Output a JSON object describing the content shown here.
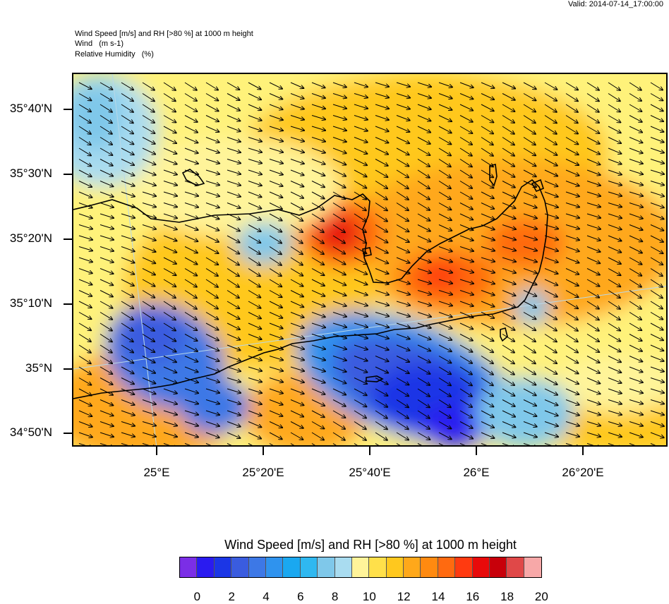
{
  "valid_time": "Valid: 2014-07-14_17:00:00",
  "header": {
    "line1": "Wind Speed [m/s] and RH [>80 %] at 1000 m height",
    "line2": "Wind   (m s-1)",
    "line3": "Relative Humidity   (%)"
  },
  "lat_labels": [
    "35°40'N",
    "35°30'N",
    "35°20'N",
    "35°10'N",
    "35°N",
    "34°50'N"
  ],
  "lon_labels": [
    "25°E",
    "25°20'E",
    "25°40'E",
    "26°E",
    "26°20'E"
  ],
  "colorbar": {
    "title": "Wind Speed [m/s] and RH [>80 %] at 1000 m height",
    "labels": [
      "0",
      "2",
      "4",
      "6",
      "8",
      "10",
      "12",
      "14",
      "16",
      "18",
      "20"
    ],
    "colors": [
      "#7b2ee6",
      "#2a1bf0",
      "#1b36e6",
      "#3a5cdf",
      "#3d78e6",
      "#2f93ee",
      "#1aa8f0",
      "#2fb8f0",
      "#7fc8ea",
      "#a9dcf0",
      "#fff49a",
      "#ffe04a",
      "#ffc81e",
      "#ffa81a",
      "#ff8a10",
      "#ff6a10",
      "#ff3a10",
      "#e80a0a",
      "#c8000a",
      "#e04848",
      "#f7a8a8"
    ]
  },
  "map": {
    "background_color": "#fff27a",
    "coastline_color": "#000000",
    "arrow_color": "#000000"
  }
}
